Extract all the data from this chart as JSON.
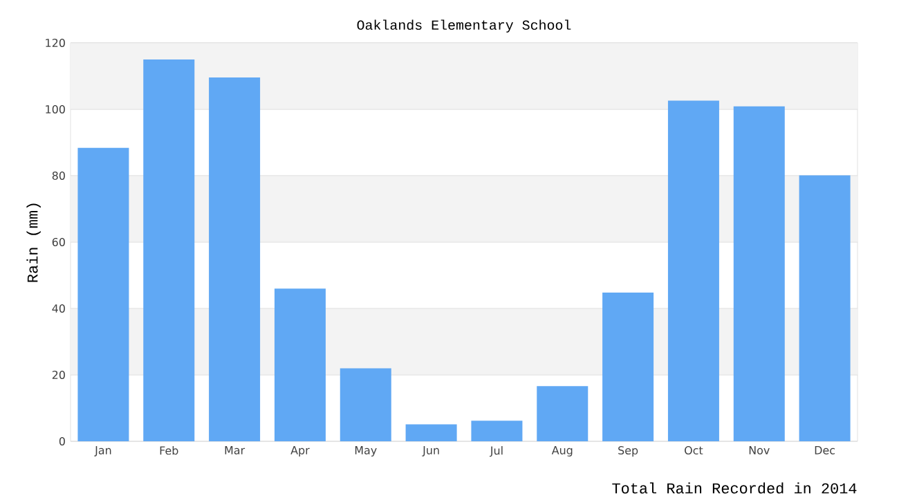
{
  "chart_data": {
    "type": "bar",
    "title": "Oaklands Elementary School",
    "xlabel": "Total Rain Recorded in 2014",
    "ylabel": "Rain (mm)",
    "categories": [
      "Jan",
      "Feb",
      "Mar",
      "Apr",
      "May",
      "Jun",
      "Jul",
      "Aug",
      "Sep",
      "Oct",
      "Nov",
      "Dec"
    ],
    "values": [
      88.4,
      115,
      109.6,
      46,
      22,
      5.1,
      6.2,
      16.6,
      44.8,
      102.6,
      100.9,
      80.1
    ],
    "color": "#60a8f4",
    "ylim": [
      0,
      120
    ],
    "yticks": [
      0,
      20,
      40,
      60,
      80,
      100,
      120
    ],
    "grid": "y",
    "bands": [
      {
        "axis": "y",
        "from": 20,
        "to": 40,
        "color": "#f3f3f3"
      },
      {
        "axis": "y",
        "from": 60,
        "to": 80,
        "color": "#f3f3f3"
      },
      {
        "axis": "y",
        "from": 100,
        "to": 120,
        "color": "#f3f3f3"
      }
    ]
  }
}
